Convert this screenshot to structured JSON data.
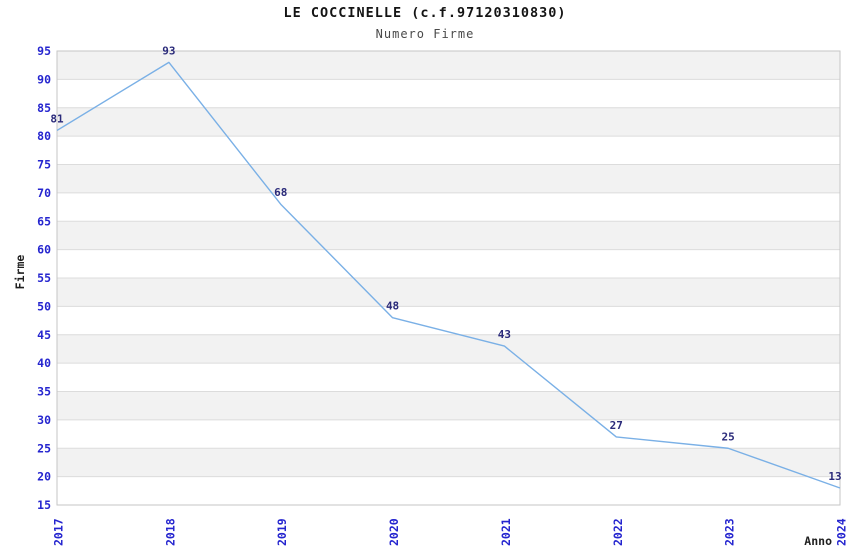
{
  "header": {
    "title": "LE COCCINELLE (c.f.97120310830)",
    "subtitle": "Numero Firme"
  },
  "axes": {
    "x_title": "Anno",
    "y_title": "Firme"
  },
  "chart_data": {
    "type": "line",
    "title": "LE COCCINELLE (c.f.97120310830)",
    "subtitle": "Numero Firme",
    "xlabel": "Anno",
    "ylabel": "Firme",
    "categories": [
      "2017",
      "2018",
      "2019",
      "2020",
      "2021",
      "2022",
      "2023",
      "2024"
    ],
    "values": [
      81,
      93,
      68,
      48,
      43,
      27,
      25,
      13
    ],
    "point_labels": [
      "81",
      "93",
      "68",
      "48",
      "43",
      "27",
      "25",
      "13"
    ],
    "values_plotted": [
      81,
      93,
      68,
      48,
      43,
      27,
      25,
      18
    ],
    "ylim": [
      15,
      95
    ],
    "ytick_step": 5,
    "yticks": [
      15,
      20,
      25,
      30,
      35,
      40,
      45,
      50,
      55,
      60,
      65,
      70,
      75,
      80,
      85,
      90,
      95
    ],
    "grid": "horizontal-bands-alternating",
    "legend_position": "none",
    "colors": {
      "line": "#7ab0e6",
      "tick_label": "#2525cf",
      "point_label": "#2a2a7a",
      "band_gray": "#f2f2f2",
      "band_white": "#ffffff",
      "gridline": "#dcdcdc",
      "plot_border": "#c6c6c6",
      "title": "#141414",
      "subtitle": "#4a4a4a",
      "axis_title": "#1f1f1f",
      "background": "#ffffff"
    }
  }
}
